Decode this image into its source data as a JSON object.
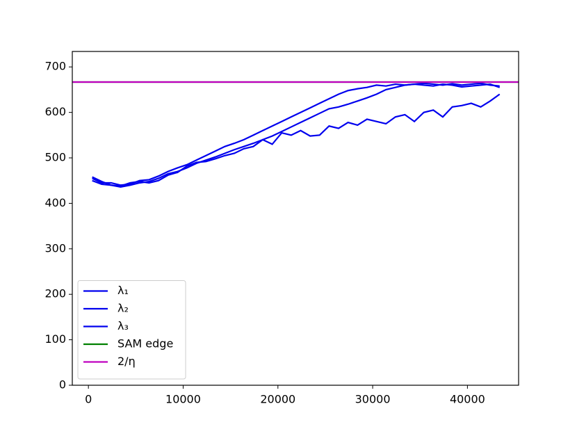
{
  "chart_data": {
    "type": "line",
    "x": [
      400,
      1400,
      2400,
      3400,
      4400,
      5400,
      6400,
      7400,
      8400,
      9400,
      10400,
      11400,
      12400,
      13400,
      14400,
      15400,
      16400,
      17400,
      18400,
      19400,
      20400,
      21400,
      22400,
      23400,
      24400,
      25400,
      26400,
      27400,
      28400,
      29400,
      30400,
      31400,
      32400,
      33400,
      34400,
      35400,
      36400,
      37400,
      38400,
      39400,
      40400,
      41400,
      42400,
      43400
    ],
    "series": [
      {
        "name": "λ₁",
        "color": "#0000ee",
        "values": [
          455,
          445,
          445,
          440,
          442,
          450,
          452,
          460,
          470,
          478,
          485,
          495,
          505,
          515,
          525,
          532,
          540,
          550,
          560,
          570,
          580,
          590,
          600,
          610,
          620,
          630,
          640,
          648,
          652,
          655,
          660,
          658,
          662,
          660,
          662,
          664,
          662,
          660,
          663,
          660,
          662,
          664,
          660,
          658
        ]
      },
      {
        "name": "λ₂",
        "color": "#0000ee",
        "values": [
          458,
          448,
          440,
          436,
          440,
          445,
          448,
          455,
          465,
          470,
          478,
          488,
          495,
          502,
          510,
          518,
          525,
          532,
          540,
          548,
          558,
          568,
          578,
          588,
          598,
          608,
          612,
          618,
          625,
          632,
          640,
          650,
          655,
          660,
          662,
          660,
          658,
          662,
          660,
          656,
          658,
          660,
          662,
          655
        ]
      },
      {
        "name": "λ₃",
        "color": "#0000ee",
        "values": [
          450,
          442,
          440,
          438,
          445,
          448,
          445,
          450,
          462,
          468,
          482,
          490,
          492,
          498,
          505,
          510,
          520,
          525,
          540,
          530,
          555,
          550,
          560,
          548,
          550,
          570,
          565,
          578,
          572,
          585,
          580,
          575,
          590,
          595,
          580,
          600,
          605,
          590,
          612,
          615,
          620,
          612,
          625,
          640
        ]
      }
    ],
    "hlines": [
      {
        "name": "SAM edge",
        "color": "#008000",
        "value": 666.67
      },
      {
        "name": "2/η",
        "color": "#bf00bf",
        "value": 666.67
      }
    ],
    "xlim": [
      -1700,
      45400
    ],
    "ylim": [
      0,
      734
    ],
    "xticks": [
      0,
      10000,
      20000,
      30000,
      40000
    ],
    "yticks": [
      0,
      100,
      200,
      300,
      400,
      500,
      600,
      700
    ],
    "legend": "lower left"
  }
}
